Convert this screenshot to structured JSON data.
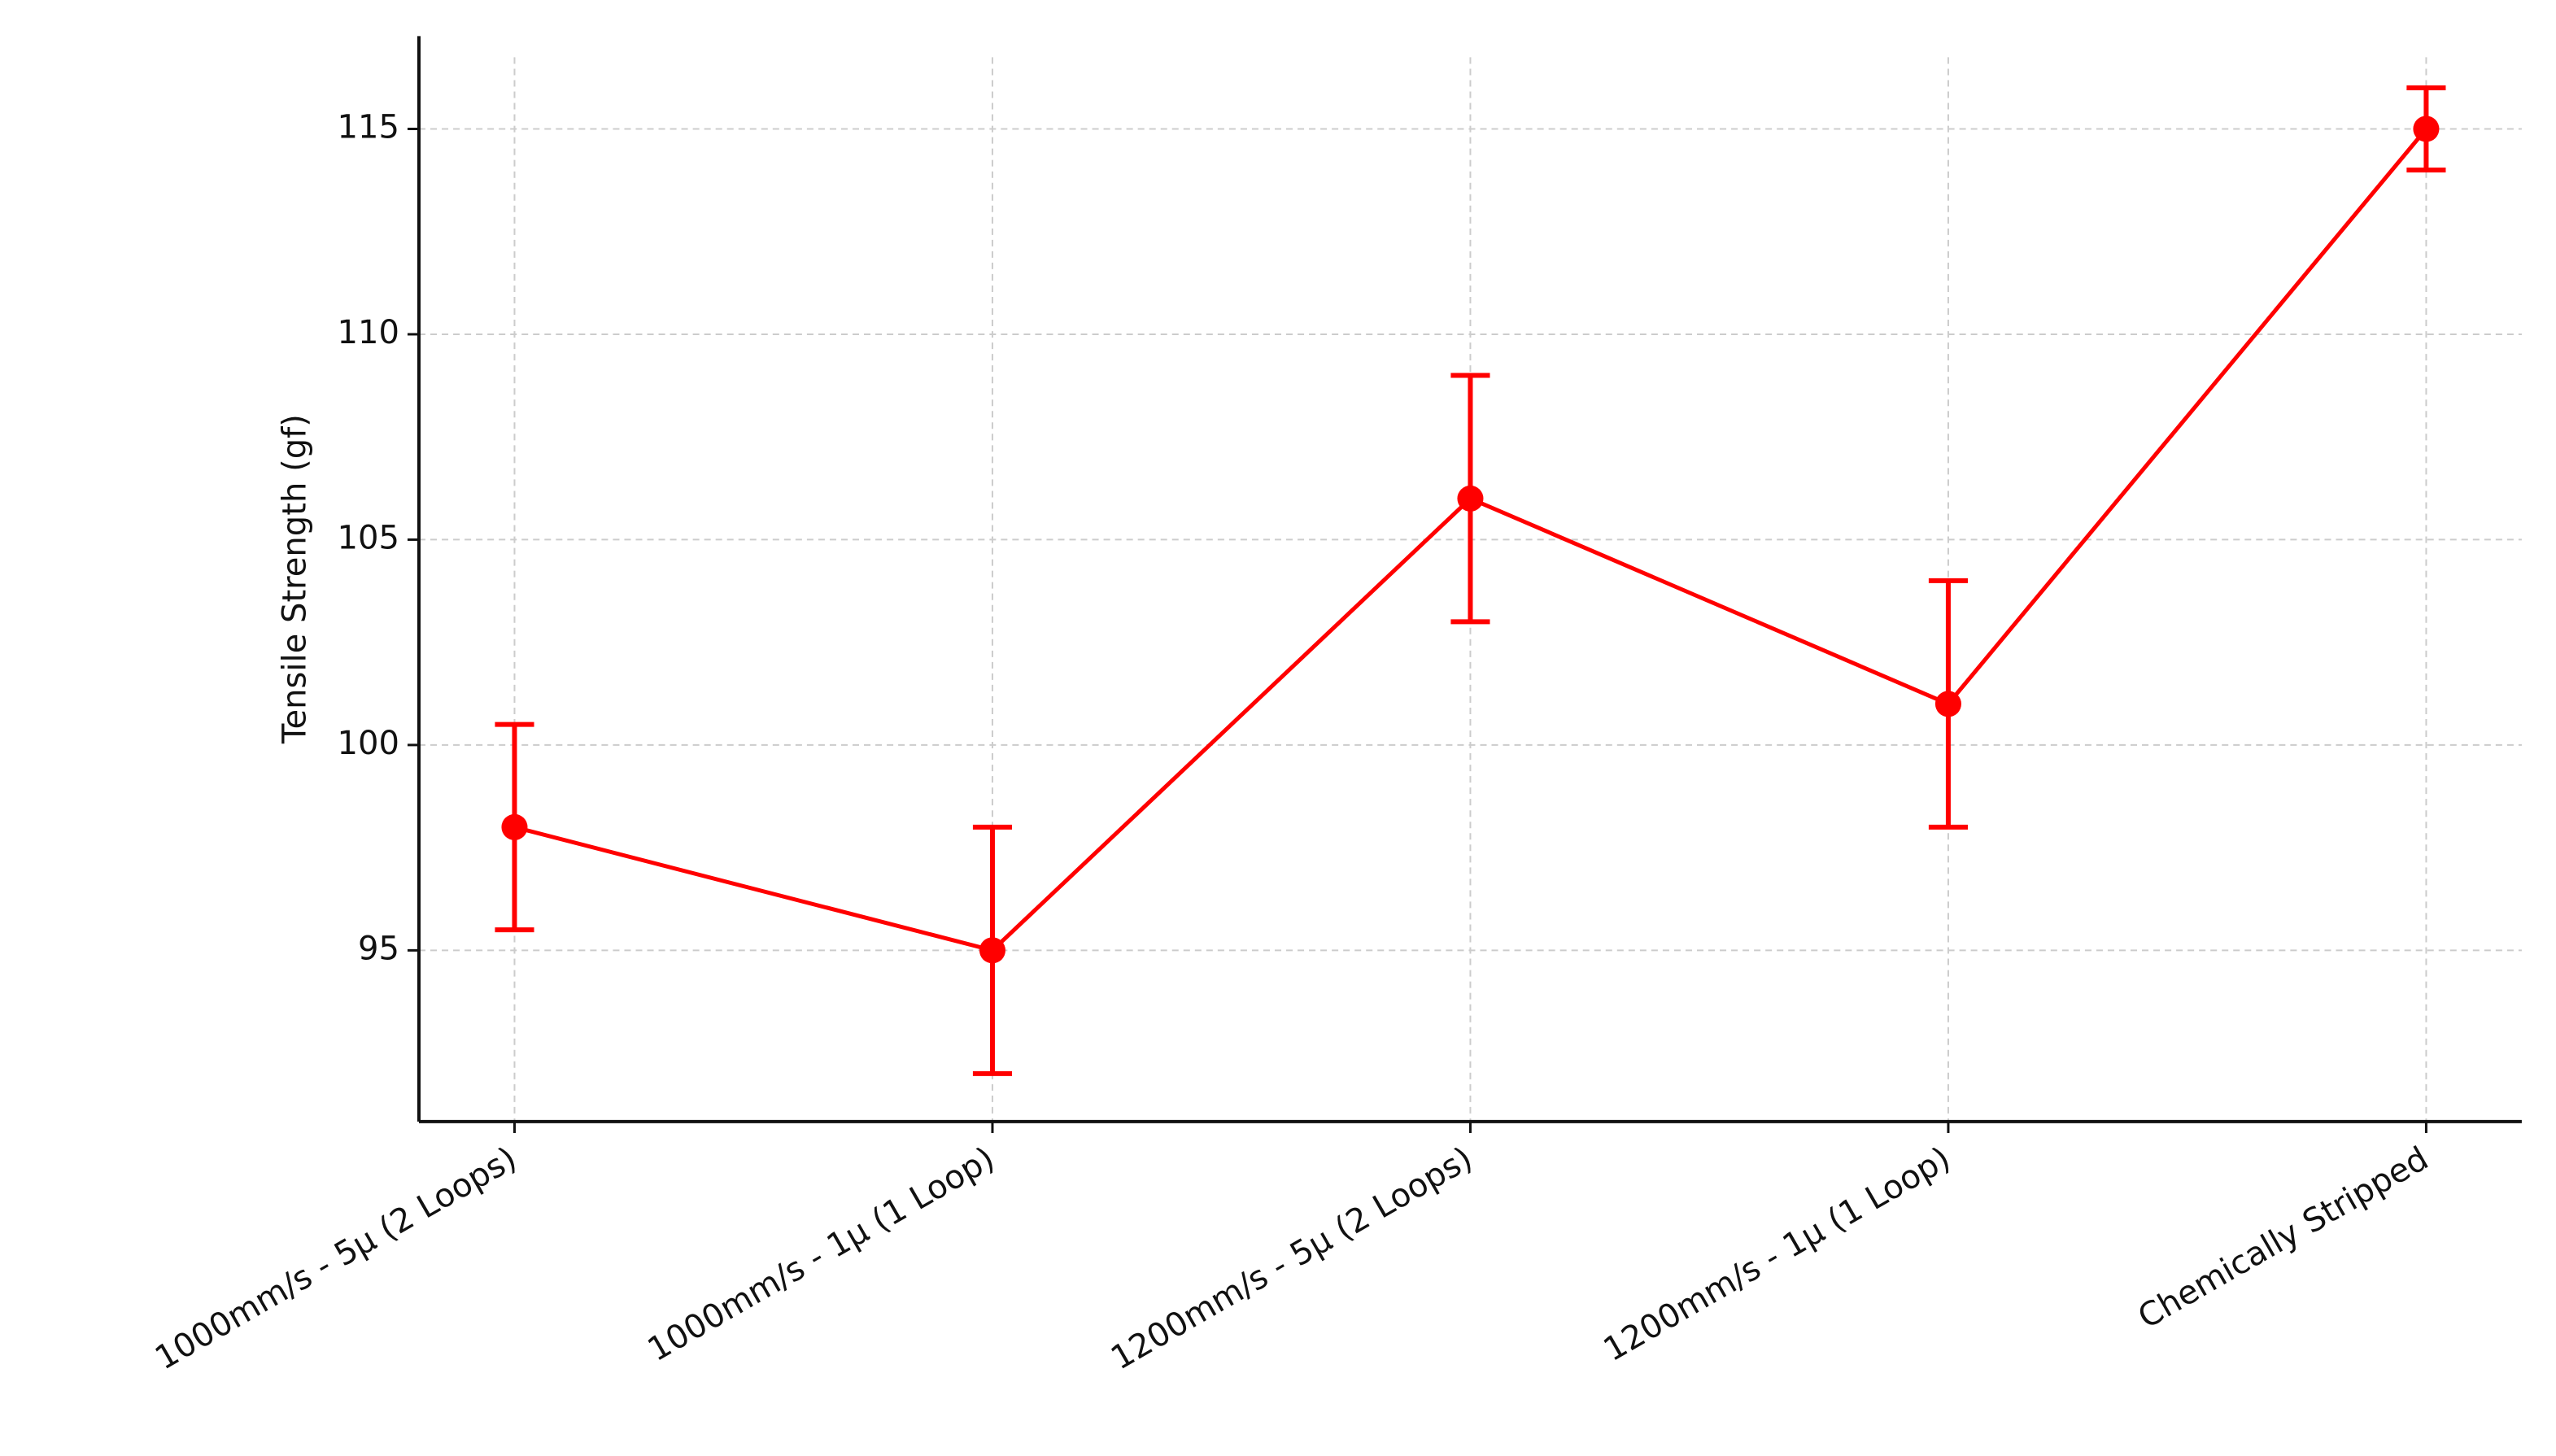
{
  "chart_data": {
    "type": "line",
    "ylabel": "Tensile Strength (gf)",
    "categories": [
      "1000mm/s - 5μ (2 Loops)",
      "1000mm/s - 1μ (1 Loop)",
      "1200mm/s - 5μ (2 Loops)",
      "1200mm/s - 1μ (1 Loop)",
      "Chemically Stripped"
    ],
    "series": [
      {
        "color": "#ff0000",
        "values": [
          98,
          95,
          106,
          101,
          115
        ],
        "errors": [
          2.5,
          3,
          3,
          3,
          1
        ]
      }
    ],
    "ylim": [
      90.83,
      117.26
    ],
    "yticks": [
      95,
      100,
      105,
      110,
      115
    ],
    "grid": true
  }
}
